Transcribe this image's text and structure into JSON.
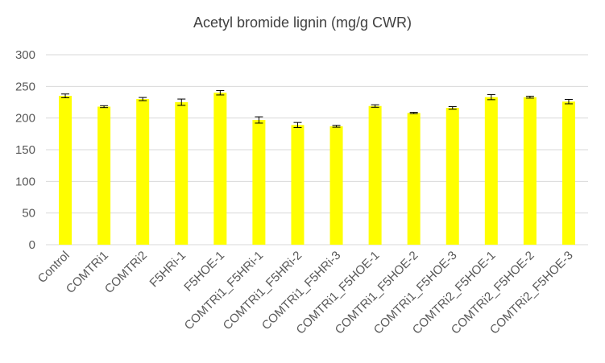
{
  "chart_data": {
    "type": "bar",
    "title": "Acetyl bromide lignin (mg/g CWR)",
    "xlabel": "",
    "ylabel": "",
    "ylim": [
      0,
      300
    ],
    "yticks": [
      0,
      50,
      100,
      150,
      200,
      250,
      300
    ],
    "grid": true,
    "legend": "none",
    "bar_color": "#FFFF00",
    "categories": [
      "Control",
      "COMTRi1",
      "COMTRi2",
      "F5HRi-1",
      "F5HOE-1",
      "COMTRi1_F5HRi-1",
      "COMTRi1_F5HRi-2",
      "COMTRi1_F5HRi-3",
      "COMTRi1_F5HOE-1",
      "COMTRi1_F5HOE-2",
      "COMTRi1_F5HOE-3",
      "COMTRi2_F5HOE-1",
      "COMTRi2_F5HOE-2",
      "COMTRi2_F5HOE-3"
    ],
    "values": [
      235,
      218,
      230,
      225,
      240,
      197,
      189,
      187,
      219,
      208,
      216,
      233,
      233,
      226
    ],
    "errors": [
      3,
      1.5,
      2.5,
      5,
      3.5,
      5,
      4,
      1.5,
      2,
      1,
      2,
      4,
      1.5,
      3.5
    ]
  }
}
